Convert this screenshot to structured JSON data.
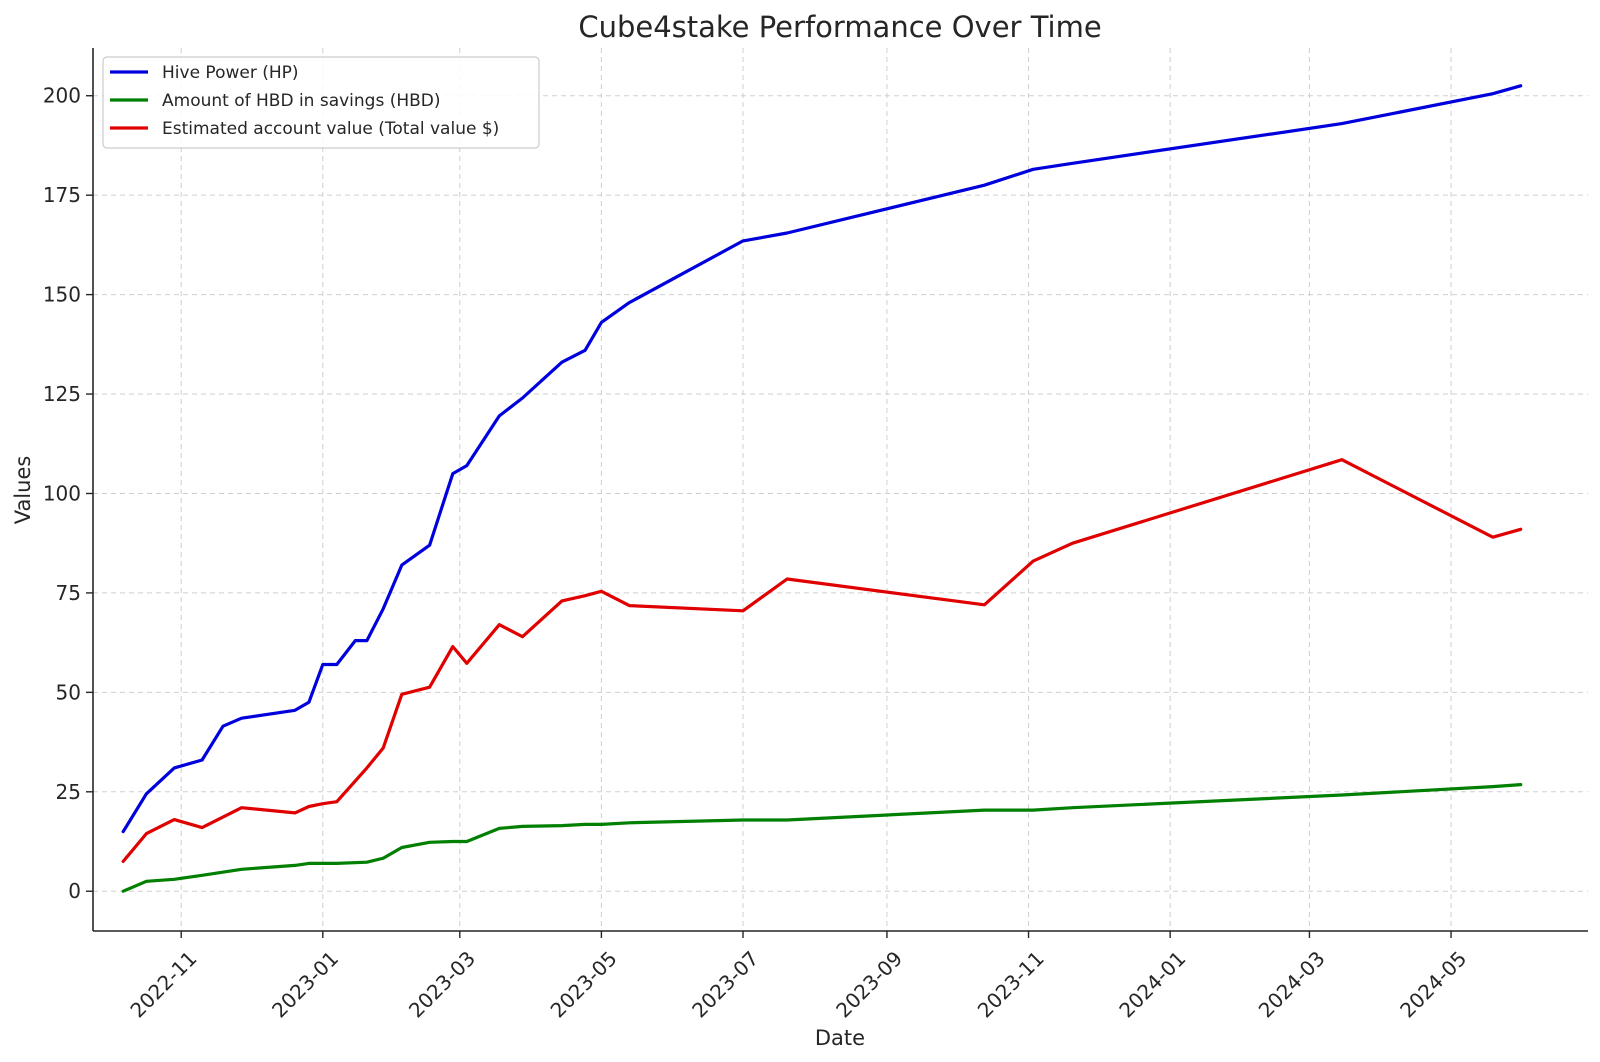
{
  "chart_data": {
    "type": "line",
    "title": "Cube4stake Performance Over Time",
    "xlabel": "Date",
    "ylabel": "Values",
    "xlim": [
      "2022-09-24",
      "2024-06-29"
    ],
    "ylim": [
      -10,
      212
    ],
    "x_ticks": [
      "2022-11",
      "2023-01",
      "2023-03",
      "2023-05",
      "2023-07",
      "2023-09",
      "2023-11",
      "2024-01",
      "2024-03",
      "2024-05"
    ],
    "y_ticks": [
      0,
      25,
      50,
      75,
      100,
      125,
      150,
      175,
      200
    ],
    "grid": true,
    "legend_position": "top-left",
    "series": [
      {
        "name": "Hive Power (HP)",
        "color": "#0000dd",
        "points": [
          [
            "2022-10-07",
            15
          ],
          [
            "2022-10-17",
            24.5
          ],
          [
            "2022-10-29",
            31
          ],
          [
            "2022-11-10",
            33
          ],
          [
            "2022-11-19",
            41.5
          ],
          [
            "2022-11-27",
            43.5
          ],
          [
            "2022-12-20",
            45.5
          ],
          [
            "2022-12-26",
            47.5
          ],
          [
            "2023-01-01",
            57
          ],
          [
            "2023-01-07",
            57
          ],
          [
            "2023-01-15",
            63
          ],
          [
            "2023-01-20",
            63
          ],
          [
            "2023-01-27",
            71
          ],
          [
            "2023-02-04",
            82
          ],
          [
            "2023-02-16",
            87
          ],
          [
            "2023-02-26",
            105
          ],
          [
            "2023-03-04",
            107
          ],
          [
            "2023-03-18",
            119.5
          ],
          [
            "2023-03-28",
            124
          ],
          [
            "2023-04-14",
            133
          ],
          [
            "2023-04-24",
            136
          ],
          [
            "2023-05-01",
            143
          ],
          [
            "2023-05-13",
            148
          ],
          [
            "2023-07-01",
            163.5
          ],
          [
            "2023-07-20",
            165.5
          ],
          [
            "2023-10-13",
            177.5
          ],
          [
            "2023-11-03",
            181.5
          ],
          [
            "2023-11-20",
            183
          ],
          [
            "2024-03-15",
            193
          ],
          [
            "2024-05-19",
            200.5
          ],
          [
            "2024-05-31",
            202.5
          ]
        ]
      },
      {
        "name": "Amount of HBD in savings (HBD)",
        "color": "#007f00",
        "points": [
          [
            "2022-10-07",
            0
          ],
          [
            "2022-10-17",
            2.5
          ],
          [
            "2022-10-29",
            3
          ],
          [
            "2022-11-10",
            4
          ],
          [
            "2022-11-27",
            5.5
          ],
          [
            "2022-12-20",
            6.5
          ],
          [
            "2022-12-26",
            7
          ],
          [
            "2023-01-07",
            7
          ],
          [
            "2023-01-20",
            7.3
          ],
          [
            "2023-01-27",
            8.3
          ],
          [
            "2023-02-04",
            11
          ],
          [
            "2023-02-16",
            12.3
          ],
          [
            "2023-02-26",
            12.5
          ],
          [
            "2023-03-04",
            12.5
          ],
          [
            "2023-03-18",
            15.8
          ],
          [
            "2023-03-28",
            16.3
          ],
          [
            "2023-04-14",
            16.5
          ],
          [
            "2023-04-24",
            16.8
          ],
          [
            "2023-05-01",
            16.8
          ],
          [
            "2023-05-13",
            17.2
          ],
          [
            "2023-07-01",
            17.9
          ],
          [
            "2023-07-20",
            17.9
          ],
          [
            "2023-10-13",
            20.4
          ],
          [
            "2023-11-03",
            20.4
          ],
          [
            "2023-11-20",
            21
          ],
          [
            "2024-03-15",
            24.2
          ],
          [
            "2024-05-19",
            26.3
          ],
          [
            "2024-05-31",
            26.8
          ]
        ]
      },
      {
        "name": "Estimated account value (Total value $)",
        "color": "#e00000",
        "points": [
          [
            "2022-10-07",
            7.5
          ],
          [
            "2022-10-17",
            14.5
          ],
          [
            "2022-10-29",
            18
          ],
          [
            "2022-11-10",
            16
          ],
          [
            "2022-11-27",
            21
          ],
          [
            "2022-12-20",
            19.7
          ],
          [
            "2022-12-26",
            21.3
          ],
          [
            "2023-01-01",
            22
          ],
          [
            "2023-01-07",
            22.5
          ],
          [
            "2023-01-20",
            31
          ],
          [
            "2023-01-27",
            36
          ],
          [
            "2023-02-04",
            49.5
          ],
          [
            "2023-02-16",
            51.3
          ],
          [
            "2023-02-26",
            61.5
          ],
          [
            "2023-03-04",
            57.3
          ],
          [
            "2023-03-18",
            67
          ],
          [
            "2023-03-28",
            64
          ],
          [
            "2023-04-14",
            73
          ],
          [
            "2023-04-24",
            74.3
          ],
          [
            "2023-05-01",
            75.4
          ],
          [
            "2023-05-13",
            71.8
          ],
          [
            "2023-07-01",
            70.5
          ],
          [
            "2023-07-20",
            78.5
          ],
          [
            "2023-10-13",
            72
          ],
          [
            "2023-11-03",
            83
          ],
          [
            "2023-11-20",
            87.5
          ],
          [
            "2024-03-15",
            108.5
          ],
          [
            "2024-05-19",
            89
          ],
          [
            "2024-05-31",
            91
          ]
        ]
      }
    ]
  }
}
